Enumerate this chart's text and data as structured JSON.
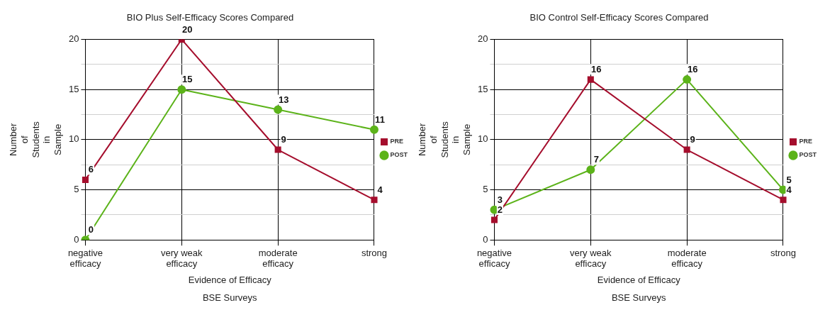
{
  "chart_data": [
    {
      "type": "line",
      "title": "BIO Plus Self-Efficacy Scores Compared",
      "xlabel": "Evidence of Efficacy",
      "ylabel": "Number of Students in Sample",
      "categories": [
        "negative efficacy",
        "very weak efficacy",
        "moderate efficacy",
        "strong"
      ],
      "series": [
        {
          "name": "PRE",
          "color": "#a50e2d",
          "marker": "square",
          "values": [
            6,
            20,
            9,
            4
          ]
        },
        {
          "name": "POST",
          "color": "#5cb31a",
          "marker": "circle",
          "values": [
            0,
            15,
            13,
            11
          ]
        }
      ],
      "ylim": [
        0,
        20
      ],
      "yticks": [
        0,
        {
          "value": 2.5,
          "label": null
        },
        5,
        {
          "value": 7.5,
          "label": null
        },
        10,
        {
          "value": 12.5,
          "label": null
        },
        15,
        {
          "value": 17.5,
          "label": null
        },
        20
      ],
      "grid": true,
      "legend": "right",
      "data_labels": true,
      "annotations": [
        "BSE Surveys"
      ]
    },
    {
      "type": "line",
      "title": "BIO Control Self-Efficacy Scores Compared",
      "xlabel": "Evidence of Efficacy",
      "ylabel": "Number of Students in Sample",
      "categories": [
        "negative efficacy",
        "very weak efficacy",
        "moderate efficacy",
        "strong"
      ],
      "series": [
        {
          "name": "PRE",
          "color": "#a50e2d",
          "marker": "square",
          "values": [
            2,
            16,
            9,
            4
          ]
        },
        {
          "name": "POST",
          "color": "#5cb31a",
          "marker": "circle",
          "values": [
            3,
            7,
            16,
            5
          ]
        }
      ],
      "ylim": [
        0,
        20
      ],
      "yticks": [
        0,
        {
          "value": 2.5,
          "label": null
        },
        5,
        {
          "value": 7.5,
          "label": null
        },
        10,
        {
          "value": 12.5,
          "label": null
        },
        15,
        {
          "value": 17.5,
          "label": null
        },
        20
      ],
      "grid": true,
      "legend": "right",
      "data_labels": true,
      "annotations": [
        "BSE Surveys"
      ]
    }
  ]
}
